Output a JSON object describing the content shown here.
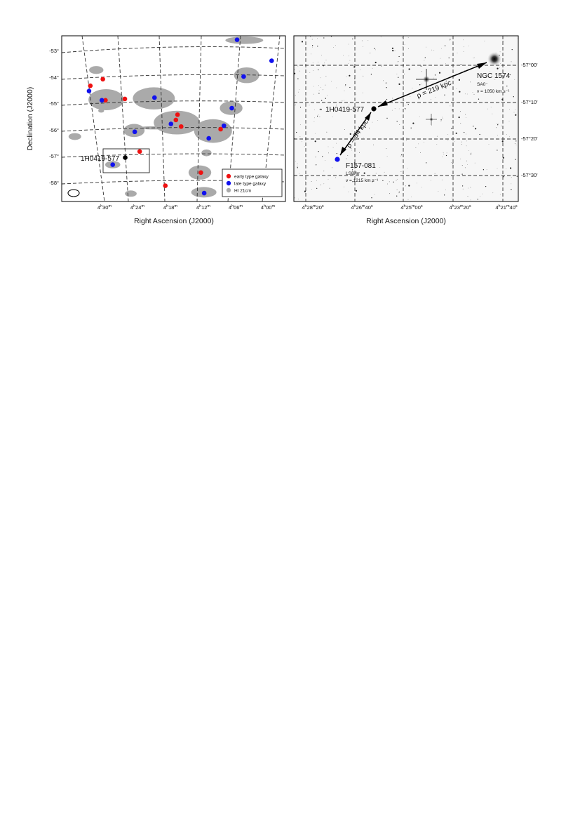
{
  "colors": {
    "early": "#ee1111",
    "late": "#1111ee",
    "hi": "#aaaaaa",
    "target": "#000000"
  },
  "chart_data": [
    {
      "type": "scatter",
      "xlabel": "Right Ascension (J2000)",
      "ylabel": "Declination (J2000)",
      "x_ticks": [
        "4h30m",
        "4h24m",
        "4h18m",
        "4h12m",
        "4h06m",
        "4h00m"
      ],
      "y_ticks": [
        "-53°",
        "-54°",
        "-55°",
        "-56°",
        "-57°",
        "-58°"
      ],
      "legend": {
        "position": "bottom-right",
        "entries": [
          {
            "label": "early type galaxy",
            "color": "#ee1111"
          },
          {
            "label": "late type galaxy",
            "color": "#1111ee"
          },
          {
            "label": "HI 21cm",
            "color": "#aaaaaa"
          }
        ]
      },
      "target_label": "1H0419-577",
      "series": [
        {
          "name": "early type galaxy",
          "points": [
            {
              "ra": 4.543,
              "dec": -54.4
            },
            {
              "ra": 4.505,
              "dec": -54.15
            },
            {
              "ra": 4.497,
              "dec": -54.95
            },
            {
              "ra": 4.438,
              "dec": -54.9
            },
            {
              "ra": 4.393,
              "dec": -56.9
            },
            {
              "ra": 4.283,
              "dec": -55.7
            },
            {
              "ra": 4.267,
              "dec": -55.95
            },
            {
              "ra": 4.278,
              "dec": -55.5
            },
            {
              "ra": 4.315,
              "dec": -58.2
            },
            {
              "ra": 4.207,
              "dec": -57.7
            },
            {
              "ra": 4.147,
              "dec": -56.05
            }
          ]
        },
        {
          "name": "late type galaxy",
          "points": [
            {
              "ra": 4.547,
              "dec": -54.6
            },
            {
              "ra": 4.508,
              "dec": -54.95
            },
            {
              "ra": 4.475,
              "dec": -57.4
            },
            {
              "ra": 4.408,
              "dec": -56.15
            },
            {
              "ra": 4.348,
              "dec": -54.85
            },
            {
              "ra": 4.298,
              "dec": -55.85
            },
            {
              "ra": 4.183,
              "dec": -56.4
            },
            {
              "ra": 4.137,
              "dec": -55.92
            },
            {
              "ra": 4.113,
              "dec": -55.25
            },
            {
              "ra": 4.077,
              "dec": -54.05
            },
            {
              "ra": 4.097,
              "dec": -52.65
            },
            {
              "ra": 3.992,
              "dec": -53.45
            },
            {
              "ra": 4.197,
              "dec": -58.48
            }
          ]
        },
        {
          "name": "1H0419-577",
          "points": [
            {
              "ra": 4.437,
              "dec": -57.13
            }
          ]
        }
      ],
      "hi_regions": [
        {
          "ra": 4.075,
          "dec": -52.67,
          "rx": 0.45,
          "ry": 0.14
        },
        {
          "ra": 4.525,
          "dec": -53.8,
          "rx": 0.17,
          "ry": 0.15
        },
        {
          "ra": 4.068,
          "dec": -54.0,
          "rx": 0.3,
          "ry": 0.3
        },
        {
          "ra": 4.495,
          "dec": -54.93,
          "rx": 0.42,
          "ry": 0.4
        },
        {
          "ra": 4.35,
          "dec": -54.88,
          "rx": 0.5,
          "ry": 0.42
        },
        {
          "ra": 4.51,
          "dec": -55.35,
          "rx": 0.07,
          "ry": 0.07
        },
        {
          "ra": 4.115,
          "dec": -55.25,
          "rx": 0.27,
          "ry": 0.26
        },
        {
          "ra": 4.28,
          "dec": -55.8,
          "rx": 0.55,
          "ry": 0.45
        },
        {
          "ra": 4.41,
          "dec": -56.1,
          "rx": 0.25,
          "ry": 0.25
        },
        {
          "ra": 4.35,
          "dec": -56.0,
          "rx": 0.38,
          "ry": 0.06
        },
        {
          "ra": 4.17,
          "dec": -56.12,
          "rx": 0.45,
          "ry": 0.45
        },
        {
          "ra": 4.59,
          "dec": -56.33,
          "rx": 0.15,
          "ry": 0.13
        },
        {
          "ra": 4.19,
          "dec": -56.95,
          "rx": 0.12,
          "ry": 0.13
        },
        {
          "ra": 4.475,
          "dec": -57.4,
          "rx": 0.18,
          "ry": 0.14
        },
        {
          "ra": 4.21,
          "dec": -57.7,
          "rx": 0.27,
          "ry": 0.27
        },
        {
          "ra": 4.42,
          "dec": -58.5,
          "rx": 0.14,
          "ry": 0.12
        },
        {
          "ra": 4.198,
          "dec": -58.45,
          "rx": 0.3,
          "ry": 0.2
        }
      ]
    },
    {
      "type": "scatter",
      "xlabel": "Right Ascension (J2000)",
      "x_ticks": [
        "4h28m20s",
        "4h26m40s",
        "4h25m00s",
        "4h23m20s",
        "4h21m40s"
      ],
      "y_ticks": [
        "-57°00'",
        "-57°10'",
        "-57°20'",
        "-57°30'"
      ],
      "objects": [
        {
          "name": "NGC 1574",
          "type": "SA0⁻",
          "velocity": "v = 1050 km s⁻¹",
          "ra": "4h21m58s",
          "dec": "-56°58'"
        },
        {
          "name": "1H0419-577",
          "type": "",
          "velocity": "",
          "ra": "4h26m00s",
          "dec": "-57°12'"
        },
        {
          "name": "F157-081",
          "type": "LSB/Irr",
          "velocity": "v = 1215 km s⁻¹",
          "ra": "4h27m26s",
          "dec": "-57°27'"
        }
      ],
      "separations": [
        {
          "from": "1H0419-577",
          "to": "NGC 1574",
          "label": "ρ = 219 kpc"
        },
        {
          "from": "1H0419-577",
          "to": "F157-081",
          "label": "ρ = 94 kpc"
        }
      ]
    }
  ]
}
